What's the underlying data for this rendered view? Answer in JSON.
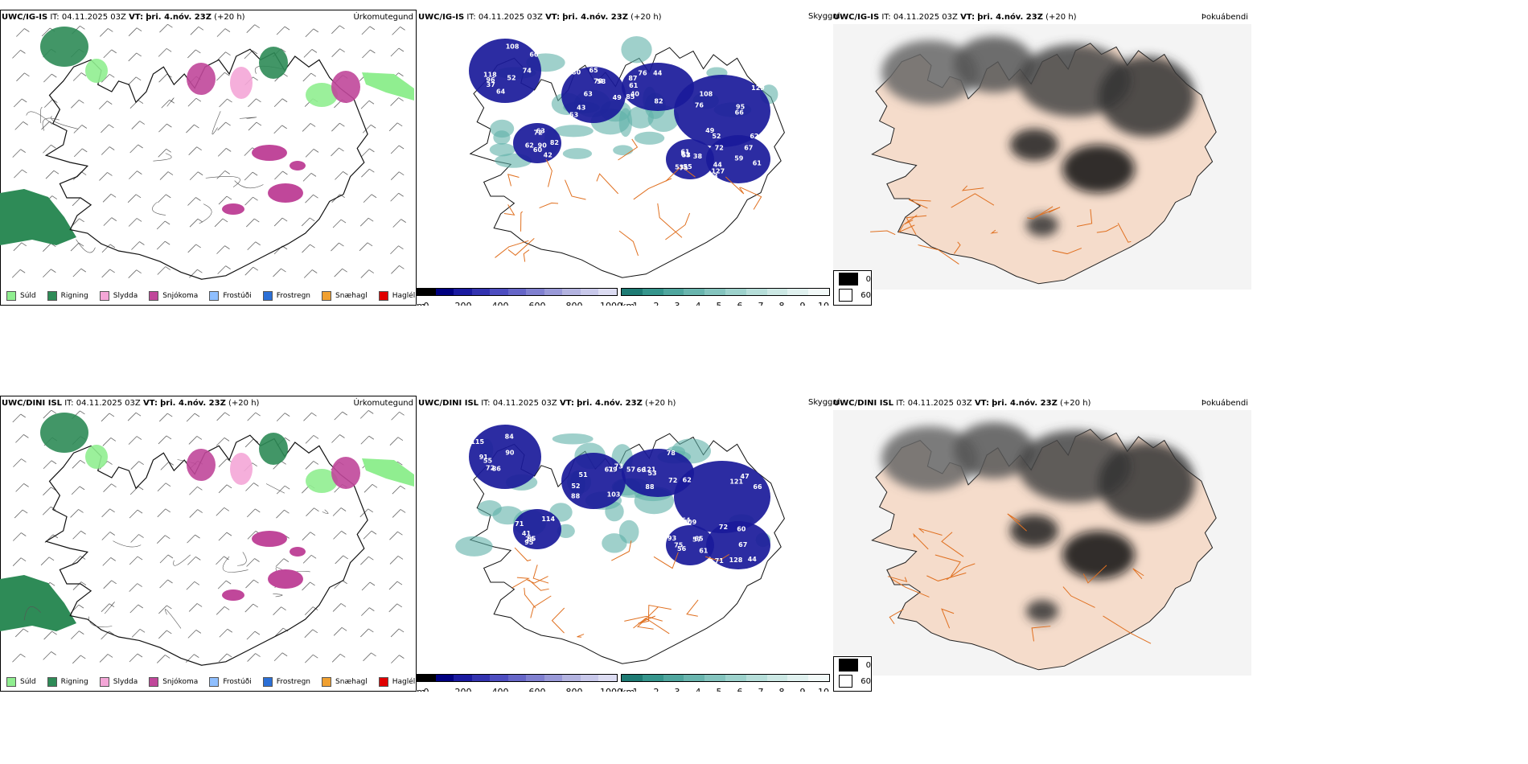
{
  "header": {
    "it_label": "IT:",
    "it_value": "04.11.2025 03Z",
    "vt_label": "VT:",
    "vt_value": "þri. 4.nóv. 23Z",
    "lead": "(+20 h)"
  },
  "rows": [
    {
      "model": "UWC/IG-IS",
      "precip_title": "Úrkomutegund",
      "fog_title": "Þokuábendi",
      "cloud_label": "Skyggni",
      "cloud_numbers": [
        "52",
        "49",
        "40",
        "62",
        "42",
        "38",
        "44",
        "37",
        "63",
        "44",
        "66",
        "72",
        "55",
        "59",
        "64",
        "43",
        "42",
        "52",
        "62",
        "53",
        "61",
        "74",
        "80",
        "87",
        "49",
        "63",
        "61",
        "53",
        "60",
        "53",
        "76",
        "95",
        "90",
        "75",
        "72",
        "118",
        "58",
        "82",
        "108",
        "60",
        "53",
        "127",
        "96",
        "78",
        "85",
        "76",
        "82",
        "61",
        "67",
        "108",
        "65",
        "61",
        "129"
      ]
    },
    {
      "model": "UWC/DINI ISL",
      "precip_title": "Úrkomutegund",
      "fog_title": "Þokuábendi",
      "cloud_label": "Skyggni",
      "cloud_numbers": [
        "91",
        "51",
        "53",
        "47",
        "41",
        "56",
        "60",
        "86",
        "52",
        "72",
        "64",
        "85",
        "65",
        "67",
        "55",
        "61",
        "88",
        "62",
        "74",
        "57",
        "72",
        "90",
        "79",
        "57",
        "66",
        "95",
        "61",
        "44",
        "72",
        "73",
        "121",
        "109",
        "114",
        "93",
        "71",
        "84",
        "88",
        "78",
        "121",
        "71",
        "75",
        "128",
        "115",
        "103",
        "66"
      ]
    }
  ],
  "precip_legend": [
    {
      "label": "Súld",
      "color": "#90ee90"
    },
    {
      "label": "Rigning",
      "color": "#2e8b57"
    },
    {
      "label": "Slydda",
      "color": "#f4a6d7"
    },
    {
      "label": "Snjókoma",
      "color": "#c0479a"
    },
    {
      "label": "Frostúði",
      "color": "#8fbfff"
    },
    {
      "label": "Frostregn",
      "color": "#2b6fd6"
    },
    {
      "label": "Snæhagl",
      "color": "#f0a030"
    },
    {
      "label": "Haglél",
      "color": "#e00000"
    }
  ],
  "cloudbase_bar": {
    "unit": "m",
    "ticks": [
      "0",
      "200",
      "400",
      "600",
      "800",
      "1000"
    ],
    "colors": [
      "#000000",
      "#000080",
      "#1a1aa0",
      "#3333b0",
      "#4d4dc0",
      "#6666c8",
      "#8080d0",
      "#9999d8",
      "#b3b3e0",
      "#c8c8ea",
      "#dcdcf2"
    ]
  },
  "visibility_bar": {
    "unit": "km",
    "ticks": [
      "1",
      "2",
      "3",
      "4",
      "5",
      "6",
      "7",
      "8",
      "9",
      "10"
    ],
    "colors": [
      "#1e7b74",
      "#35958c",
      "#4fa69e",
      "#69b5ae",
      "#84c4be",
      "#9dd2cc",
      "#b6ded9",
      "#cce8e4",
      "#e0f1ef",
      "#f2f9f8"
    ]
  },
  "fog_legend": [
    {
      "label": "0",
      "color": "#000000"
    },
    {
      "label": "60",
      "color": "#ffffff"
    }
  ],
  "colors": {
    "precip_rain": "#2e8b57",
    "precip_drizzle": "#90ee90",
    "precip_snow": "#c0479a",
    "precip_sleet": "#f4a6d7",
    "cloud_blue": "#1a1a9a",
    "vis_teal": "#5fb0a8",
    "roads": "#e07020",
    "fog_grey": "#555555",
    "lowland": "#f5dccb"
  }
}
